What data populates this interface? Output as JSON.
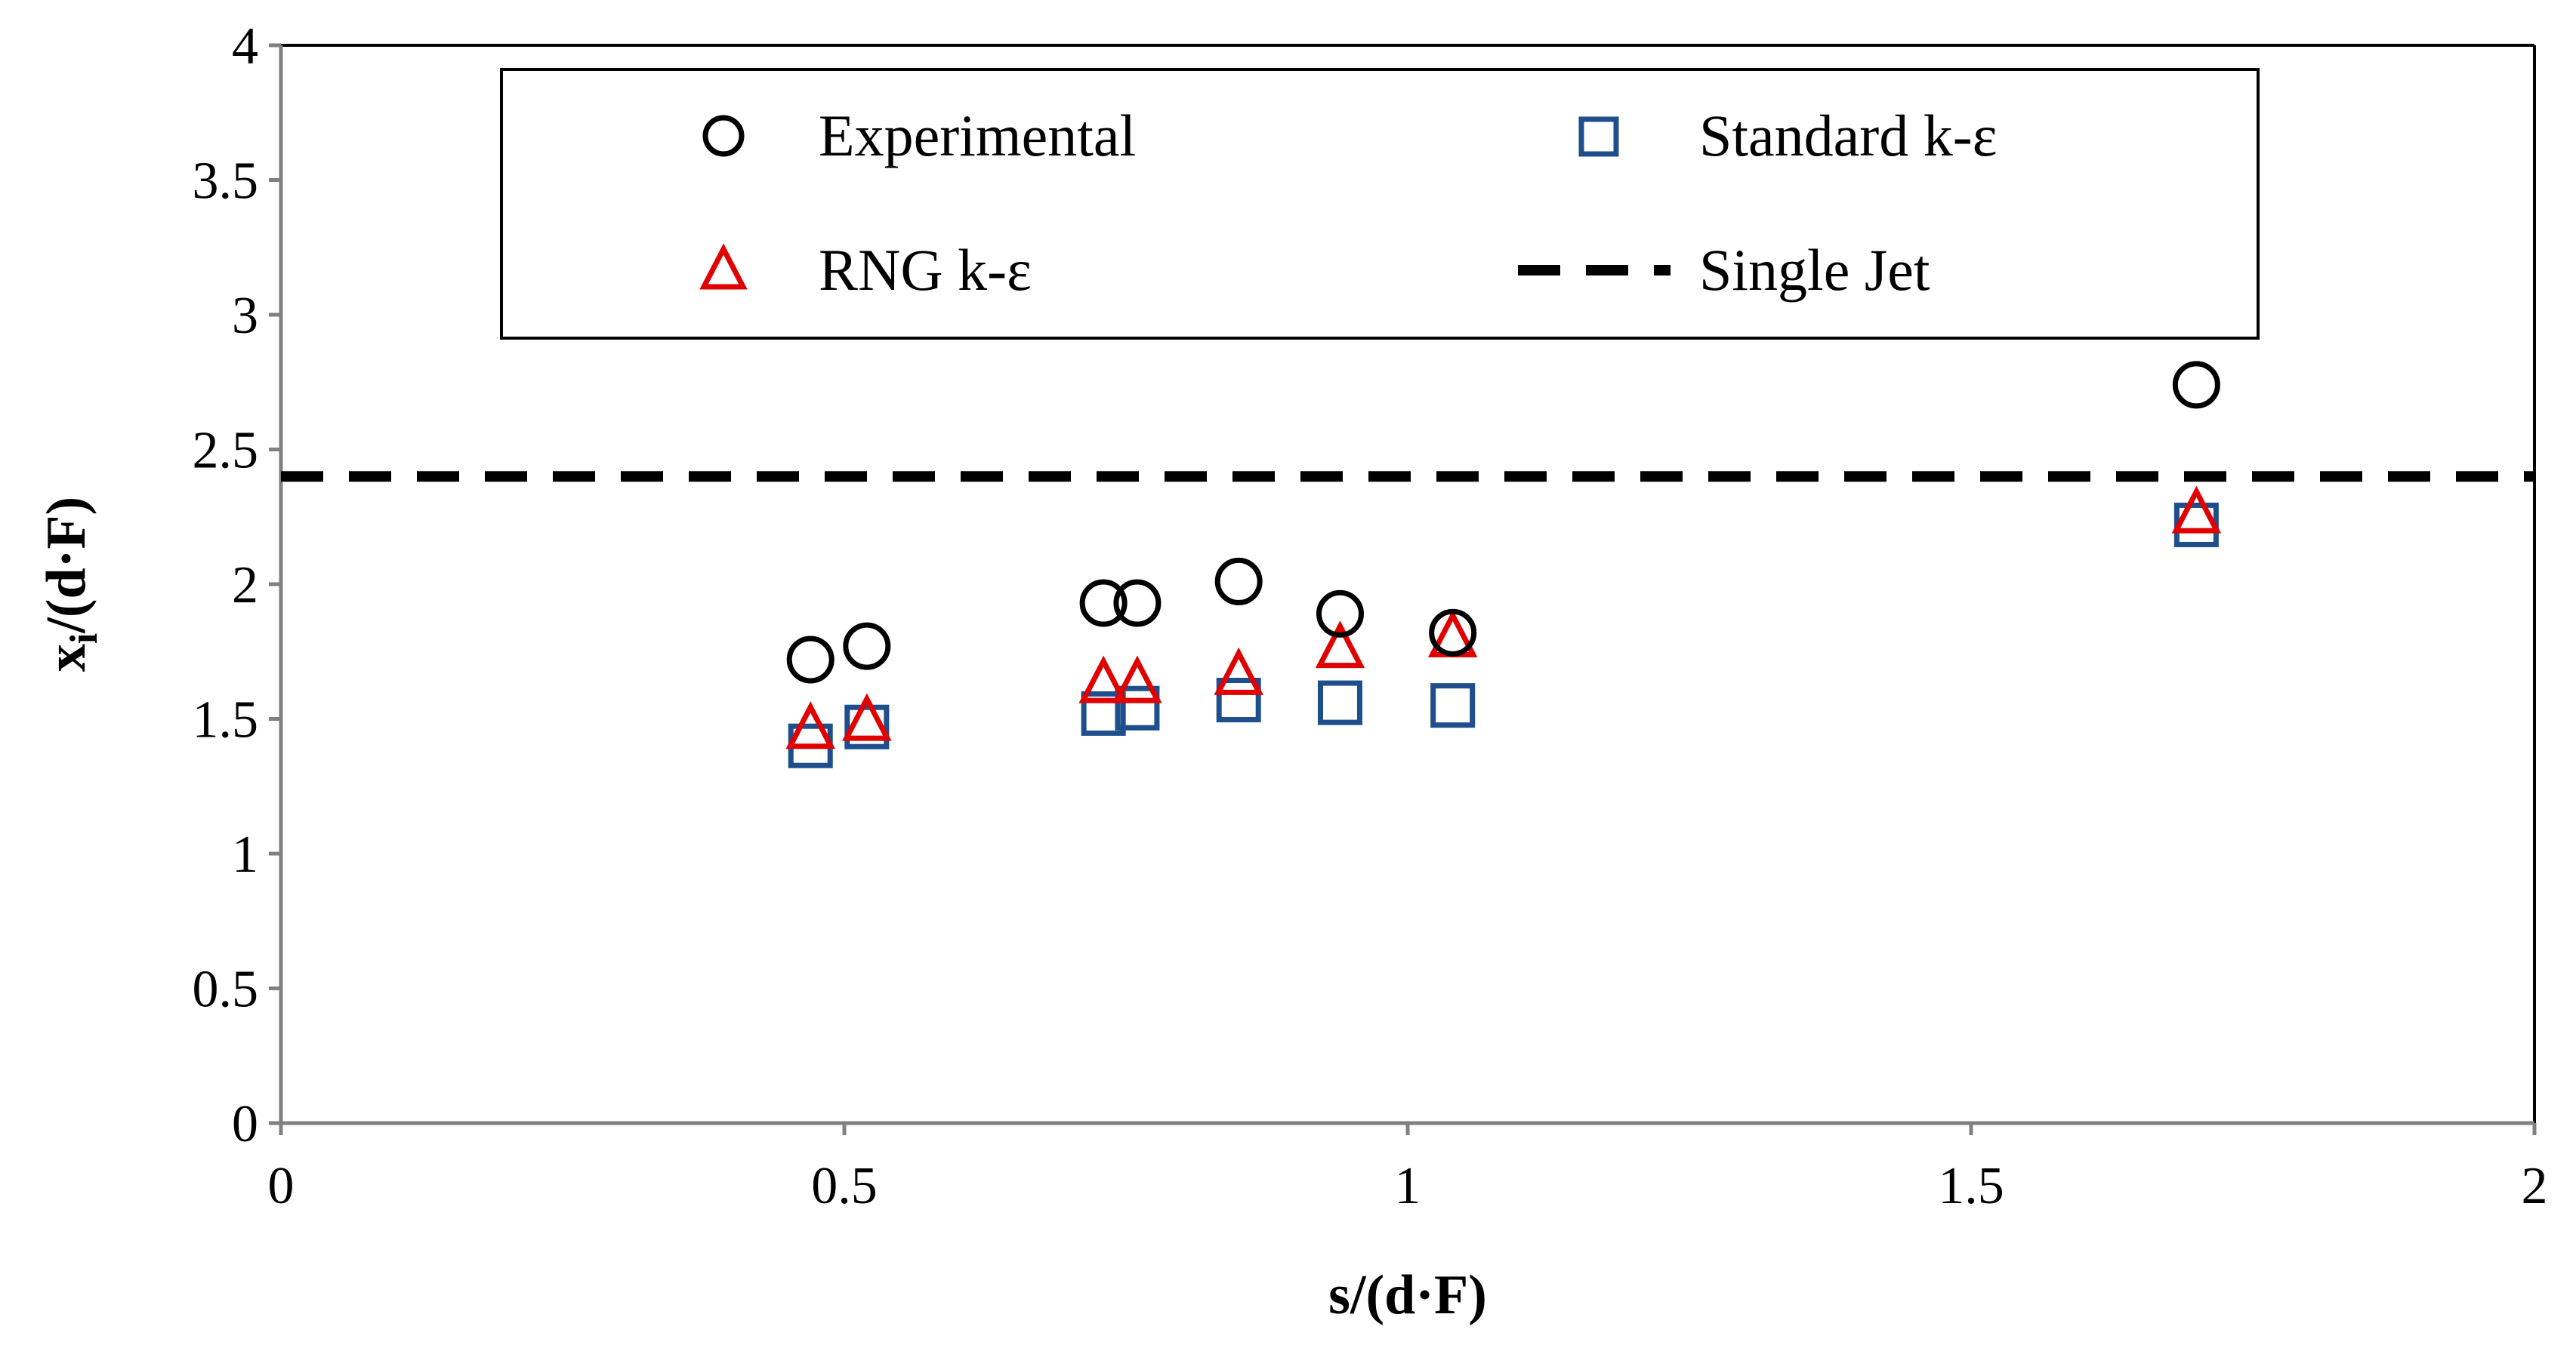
{
  "chart_data": {
    "type": "scatter",
    "title": "",
    "xlabel": "s/(d·F)",
    "ylabel_main": "x",
    "ylabel_sub": "i",
    "ylabel_rest": "/(d·F)",
    "xlim": [
      0,
      2
    ],
    "ylim": [
      0,
      4
    ],
    "xticks": [
      "0",
      "0.5",
      "1",
      "1.5",
      "2"
    ],
    "xtick_values": [
      0,
      0.5,
      1,
      1.5,
      2
    ],
    "yticks": [
      "0",
      "0.5",
      "1",
      "1.5",
      "2",
      "2.5",
      "3",
      "3.5",
      "4"
    ],
    "ytick_values": [
      0,
      0.5,
      1,
      1.5,
      2,
      2.5,
      3,
      3.5,
      4
    ],
    "legend_position": "top-center",
    "series": [
      {
        "name": "Experimental",
        "marker": "circle",
        "color": "#000000",
        "x": [
          0.47,
          0.52,
          0.73,
          0.76,
          0.85,
          0.94,
          1.04,
          1.7
        ],
        "y": [
          1.72,
          1.77,
          1.93,
          1.93,
          2.01,
          1.89,
          1.82,
          2.74
        ]
      },
      {
        "name": "Standard k-ε",
        "marker": "square",
        "color": "#1f4e8c",
        "x": [
          0.47,
          0.52,
          0.73,
          0.76,
          0.85,
          0.94,
          1.04,
          1.7
        ],
        "y": [
          1.4,
          1.47,
          1.52,
          1.54,
          1.57,
          1.56,
          1.55,
          2.22
        ]
      },
      {
        "name": "RNG k-ε",
        "marker": "triangle",
        "color": "#e00000",
        "x": [
          0.47,
          0.52,
          0.73,
          0.76,
          0.85,
          0.94,
          1.04,
          1.7
        ],
        "y": [
          1.46,
          1.49,
          1.63,
          1.63,
          1.66,
          1.76,
          1.8,
          2.26
        ]
      },
      {
        "name": "Single Jet",
        "marker": "dashed-line",
        "color": "#000000",
        "y_constant": 2.4
      }
    ]
  }
}
